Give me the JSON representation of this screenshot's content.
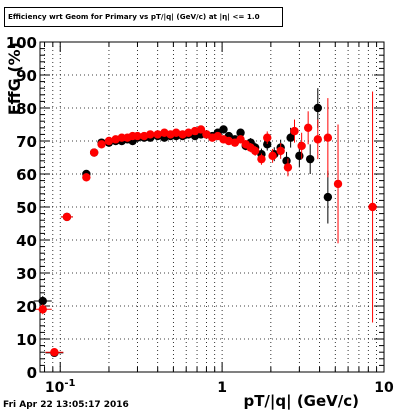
{
  "title": "Efficiency wrt Geom for Primary vs pT/|q| (GeV/c) at |η| <= 1.0",
  "footer": "Fri Apr 22 13:05:17 2016",
  "colors": {
    "series_black": "#000000",
    "series_red": "#ff0000",
    "grid": "#000000"
  },
  "chart_data": {
    "type": "scatter",
    "xlabel": "pT/|q| (GeV/c)",
    "ylabel": "EffG (%)",
    "xscale": "log",
    "xlim": [
      0.075,
      10
    ],
    "ylim": [
      0,
      100
    ],
    "grid": true,
    "x_tick_labels": [
      "10^-1",
      "1",
      "10"
    ],
    "y_tick_labels": [
      "0",
      "10",
      "20",
      "30",
      "40",
      "50",
      "60",
      "70",
      "80",
      "90",
      "100"
    ],
    "series": [
      {
        "color": "#000000",
        "points": [
          {
            "x": 0.078,
            "y": 21.5,
            "err": 1.5
          },
          {
            "x": 0.092,
            "y": 5.8,
            "err": 1.0
          },
          {
            "x": 0.11,
            "y": 47.0,
            "err": 1.0
          },
          {
            "x": 0.145,
            "y": 60.0,
            "err": 1.2
          },
          {
            "x": 0.162,
            "y": 66.5,
            "err": 1.0
          },
          {
            "x": 0.18,
            "y": 69.5,
            "err": 0.8
          },
          {
            "x": 0.2,
            "y": 69.5,
            "err": 0.8
          },
          {
            "x": 0.22,
            "y": 70.0,
            "err": 0.7
          },
          {
            "x": 0.24,
            "y": 70.0,
            "err": 0.7
          },
          {
            "x": 0.26,
            "y": 70.5,
            "err": 0.7
          },
          {
            "x": 0.28,
            "y": 70.0,
            "err": 0.7
          },
          {
            "x": 0.3,
            "y": 71.0,
            "err": 0.7
          },
          {
            "x": 0.33,
            "y": 71.0,
            "err": 0.7
          },
          {
            "x": 0.36,
            "y": 71.0,
            "err": 0.7
          },
          {
            "x": 0.4,
            "y": 71.5,
            "err": 0.7
          },
          {
            "x": 0.44,
            "y": 71.0,
            "err": 0.7
          },
          {
            "x": 0.48,
            "y": 71.5,
            "err": 0.7
          },
          {
            "x": 0.52,
            "y": 71.5,
            "err": 0.8
          },
          {
            "x": 0.57,
            "y": 71.5,
            "err": 0.8
          },
          {
            "x": 0.62,
            "y": 72.0,
            "err": 0.8
          },
          {
            "x": 0.68,
            "y": 71.5,
            "err": 0.8
          },
          {
            "x": 0.74,
            "y": 72.0,
            "err": 0.8
          },
          {
            "x": 0.8,
            "y": 72.0,
            "err": 0.9
          },
          {
            "x": 0.87,
            "y": 71.5,
            "err": 0.9
          },
          {
            "x": 0.94,
            "y": 72.5,
            "err": 0.9
          },
          {
            "x": 1.02,
            "y": 73.5,
            "err": 1.0
          },
          {
            "x": 1.1,
            "y": 71.5,
            "err": 1.0
          },
          {
            "x": 1.2,
            "y": 70.5,
            "err": 1.1
          },
          {
            "x": 1.3,
            "y": 72.5,
            "err": 1.2
          },
          {
            "x": 1.4,
            "y": 68.5,
            "err": 1.3
          },
          {
            "x": 1.5,
            "y": 69.5,
            "err": 1.4
          },
          {
            "x": 1.6,
            "y": 68.0,
            "err": 1.5
          },
          {
            "x": 1.75,
            "y": 66.0,
            "err": 1.7
          },
          {
            "x": 1.9,
            "y": 69.0,
            "err": 1.9
          },
          {
            "x": 2.1,
            "y": 66.0,
            "err": 2.1
          },
          {
            "x": 2.3,
            "y": 68.0,
            "err": 2.4
          },
          {
            "x": 2.5,
            "y": 64.0,
            "err": 2.7
          },
          {
            "x": 2.65,
            "y": 71.0,
            "err": 3.0
          },
          {
            "x": 3.0,
            "y": 65.5,
            "err": 3.5
          },
          {
            "x": 3.5,
            "y": 64.5,
            "err": 4.5
          },
          {
            "x": 3.9,
            "y": 80.0,
            "err": 6.0
          },
          {
            "x": 4.5,
            "y": 53.0,
            "err": 8.0
          }
        ]
      },
      {
        "color": "#ff0000",
        "points": [
          {
            "x": 0.078,
            "y": 19.0,
            "err": 1.5
          },
          {
            "x": 0.092,
            "y": 6.0,
            "err": 1.0
          },
          {
            "x": 0.11,
            "y": 47.0,
            "err": 1.0
          },
          {
            "x": 0.145,
            "y": 59.0,
            "err": 1.2
          },
          {
            "x": 0.162,
            "y": 66.5,
            "err": 1.0
          },
          {
            "x": 0.18,
            "y": 69.0,
            "err": 0.8
          },
          {
            "x": 0.2,
            "y": 70.0,
            "err": 0.8
          },
          {
            "x": 0.22,
            "y": 70.5,
            "err": 0.7
          },
          {
            "x": 0.24,
            "y": 71.0,
            "err": 0.7
          },
          {
            "x": 0.26,
            "y": 71.0,
            "err": 0.7
          },
          {
            "x": 0.28,
            "y": 71.5,
            "err": 0.7
          },
          {
            "x": 0.3,
            "y": 71.5,
            "err": 0.7
          },
          {
            "x": 0.33,
            "y": 71.5,
            "err": 0.7
          },
          {
            "x": 0.36,
            "y": 72.0,
            "err": 0.7
          },
          {
            "x": 0.4,
            "y": 72.0,
            "err": 0.7
          },
          {
            "x": 0.44,
            "y": 72.5,
            "err": 0.7
          },
          {
            "x": 0.48,
            "y": 72.0,
            "err": 0.7
          },
          {
            "x": 0.52,
            "y": 72.5,
            "err": 0.8
          },
          {
            "x": 0.57,
            "y": 72.0,
            "err": 0.8
          },
          {
            "x": 0.62,
            "y": 72.5,
            "err": 0.8
          },
          {
            "x": 0.68,
            "y": 73.0,
            "err": 0.8
          },
          {
            "x": 0.74,
            "y": 73.5,
            "err": 0.8
          },
          {
            "x": 0.8,
            "y": 72.0,
            "err": 0.9
          },
          {
            "x": 0.87,
            "y": 71.0,
            "err": 0.9
          },
          {
            "x": 0.94,
            "y": 71.5,
            "err": 0.9
          },
          {
            "x": 1.02,
            "y": 70.5,
            "err": 1.0
          },
          {
            "x": 1.1,
            "y": 70.0,
            "err": 1.0
          },
          {
            "x": 1.2,
            "y": 69.5,
            "err": 1.1
          },
          {
            "x": 1.3,
            "y": 70.5,
            "err": 1.2
          },
          {
            "x": 1.4,
            "y": 69.0,
            "err": 1.3
          },
          {
            "x": 1.5,
            "y": 68.0,
            "err": 1.4
          },
          {
            "x": 1.6,
            "y": 67.0,
            "err": 1.5
          },
          {
            "x": 1.75,
            "y": 64.5,
            "err": 1.7
          },
          {
            "x": 1.9,
            "y": 71.0,
            "err": 1.9
          },
          {
            "x": 2.05,
            "y": 65.5,
            "err": 2.1
          },
          {
            "x": 2.3,
            "y": 67.0,
            "err": 2.4
          },
          {
            "x": 2.55,
            "y": 62.0,
            "err": 2.7
          },
          {
            "x": 2.8,
            "y": 73.0,
            "err": 3.5
          },
          {
            "x": 3.1,
            "y": 68.5,
            "err": 4.0
          },
          {
            "x": 3.4,
            "y": 74.0,
            "err": 5.0
          },
          {
            "x": 3.9,
            "y": 70.5,
            "err": 6.0
          },
          {
            "x": 4.5,
            "y": 71.0,
            "err": 12.0
          },
          {
            "x": 5.2,
            "y": 57.0,
            "err": 18.0
          },
          {
            "x": 8.5,
            "y": 50.0,
            "err": 35.0
          }
        ]
      }
    ]
  }
}
